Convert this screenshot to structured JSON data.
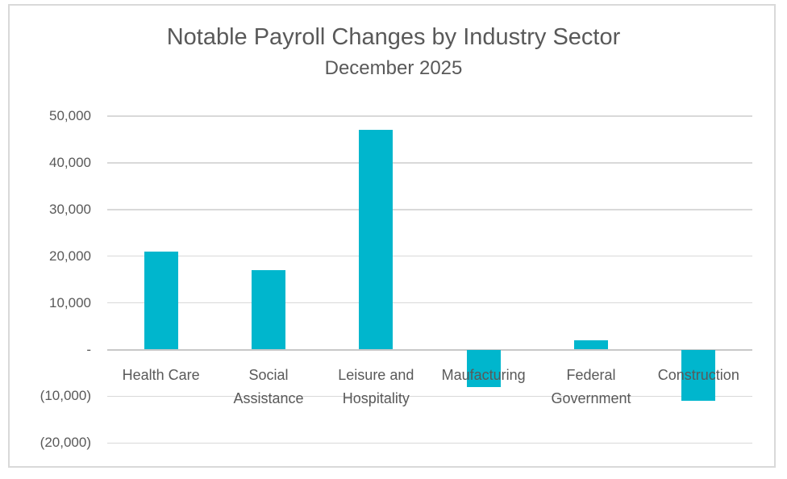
{
  "title": "Notable Payroll Changes by Industry Sector",
  "subtitle": "December 2025",
  "colors": {
    "background": "#ffffff",
    "frame_border": "#d9d9d9",
    "text": "#595959",
    "gridline": "#d9d9d9",
    "axis_line": "#c8c8c8",
    "bar": "#00b6cd"
  },
  "chart_data": {
    "type": "bar",
    "title": "Notable Payroll Changes by Industry Sector",
    "subtitle": "December 2025",
    "categories": [
      "Health Care",
      "Social Assistance",
      "Leisure and Hospitality",
      "Maufacturing",
      "Federal Government",
      "Construction"
    ],
    "values": [
      21000,
      17000,
      47000,
      -8000,
      2000,
      -11000
    ],
    "bar_color": "#00b6cd",
    "xlabel": "",
    "ylabel": "",
    "ylim": [
      -20000,
      50000
    ],
    "grid": true,
    "legend": false,
    "y_ticks": [
      {
        "value": 50000,
        "label": "50,000"
      },
      {
        "value": 40000,
        "label": "40,000"
      },
      {
        "value": 30000,
        "label": "30,000"
      },
      {
        "value": 20000,
        "label": "20,000"
      },
      {
        "value": 10000,
        "label": "10,000"
      },
      {
        "value": 0,
        "label": "-"
      },
      {
        "value": -10000,
        "label": "(10,000)"
      },
      {
        "value": -20000,
        "label": "(20,000)"
      }
    ]
  }
}
